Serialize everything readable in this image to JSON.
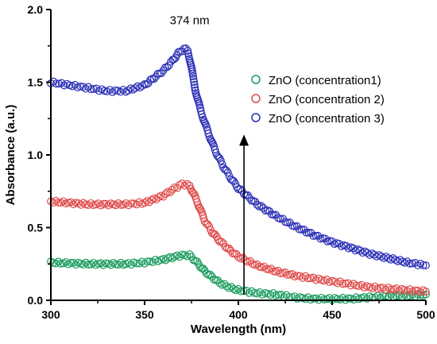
{
  "chart_data": {
    "type": "scatter",
    "xlabel": "Wavelength (nm)",
    "ylabel": "Absorbance (a.u.)",
    "xlim": [
      300,
      500
    ],
    "ylim": [
      0.0,
      2.0
    ],
    "x_ticks": [
      "300",
      "350",
      "400",
      "450",
      "500"
    ],
    "y_ticks": [
      "0.0",
      "0.5",
      "1.0",
      "1.5",
      "2.0"
    ],
    "legend_position": "top-right",
    "annotations": [
      {
        "text": "374 nm",
        "x": 374,
        "y": 1.9
      },
      {
        "arrow": "upward",
        "x": 403,
        "y_from": 0.04,
        "y_to": 1.14
      }
    ],
    "series": [
      {
        "name": "ZnO (concentration1)",
        "color": "#1a9b5e",
        "x": [
          300,
          320,
          340,
          350,
          360,
          366,
          370,
          374,
          378,
          382,
          386,
          390,
          395,
          400,
          410,
          420,
          430,
          440,
          450,
          460,
          470,
          480,
          490,
          500
        ],
        "y": [
          0.26,
          0.25,
          0.25,
          0.26,
          0.28,
          0.3,
          0.31,
          0.31,
          0.26,
          0.2,
          0.16,
          0.12,
          0.09,
          0.07,
          0.05,
          0.04,
          0.02,
          0.01,
          0.01,
          0.01,
          0.02,
          0.03,
          0.03,
          0.04
        ]
      },
      {
        "name": "ZnO (concentration 2)",
        "color": "#e04a4a",
        "x": [
          300,
          320,
          340,
          350,
          360,
          366,
          370,
          374,
          378,
          382,
          386,
          390,
          395,
          400,
          410,
          420,
          430,
          440,
          450,
          460,
          470,
          480,
          490,
          500
        ],
        "y": [
          0.68,
          0.66,
          0.66,
          0.67,
          0.72,
          0.77,
          0.8,
          0.79,
          0.68,
          0.55,
          0.47,
          0.41,
          0.35,
          0.3,
          0.24,
          0.2,
          0.17,
          0.15,
          0.13,
          0.11,
          0.09,
          0.08,
          0.07,
          0.06
        ]
      },
      {
        "name": "ZnO (concentration 3)",
        "color": "#2b2fb5",
        "x": [
          300,
          310,
          320,
          330,
          340,
          350,
          355,
          360,
          365,
          368,
          371,
          373,
          375,
          377,
          380,
          384,
          388,
          392,
          396,
          400,
          410,
          420,
          430,
          440,
          450,
          460,
          470,
          480,
          490,
          500
        ],
        "y": [
          1.5,
          1.48,
          1.46,
          1.44,
          1.44,
          1.48,
          1.53,
          1.58,
          1.65,
          1.7,
          1.73,
          1.72,
          1.6,
          1.45,
          1.3,
          1.15,
          1.02,
          0.92,
          0.84,
          0.77,
          0.66,
          0.58,
          0.51,
          0.45,
          0.4,
          0.36,
          0.32,
          0.29,
          0.26,
          0.24
        ]
      }
    ]
  }
}
